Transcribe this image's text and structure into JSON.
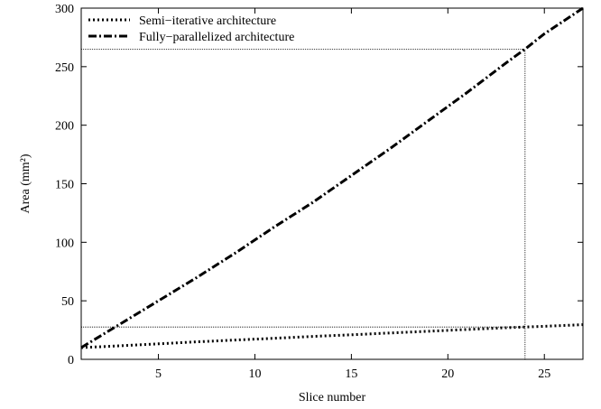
{
  "chart_data": {
    "type": "line",
    "xlabel": "Slice number",
    "ylabel": "Area (mm²)",
    "xlim": [
      1,
      27
    ],
    "ylim": [
      0,
      300
    ],
    "xticks": [
      5,
      10,
      15,
      20,
      25
    ],
    "yticks": [
      0,
      50,
      100,
      150,
      200,
      250,
      300
    ],
    "grid": false,
    "legend_position": "top-left",
    "series": [
      {
        "name": "Semi−iterative architecture",
        "style": "dotted",
        "x": [
          1,
          3,
          5,
          7,
          9,
          11,
          13,
          15,
          17,
          19,
          21,
          23,
          24,
          25,
          27
        ],
        "y": [
          10,
          11.6,
          13.3,
          15,
          16.5,
          18,
          19.6,
          21,
          22.5,
          24,
          25.5,
          27,
          27.6,
          28.2,
          29.6
        ]
      },
      {
        "name": "Fully−parallelized architecture",
        "style": "dash-dot",
        "x": [
          1,
          3,
          5,
          7,
          9,
          11,
          13,
          15,
          17,
          19,
          21,
          23,
          24,
          25,
          27
        ],
        "y": [
          10,
          30,
          50,
          70,
          91,
          113,
          134,
          157,
          180,
          204,
          228,
          253,
          265,
          278,
          300
        ]
      }
    ],
    "reference_lines": [
      {
        "orientation": "horizontal",
        "value": 265
      },
      {
        "orientation": "horizontal",
        "value": 27.6
      },
      {
        "orientation": "vertical",
        "value": 24
      }
    ]
  }
}
